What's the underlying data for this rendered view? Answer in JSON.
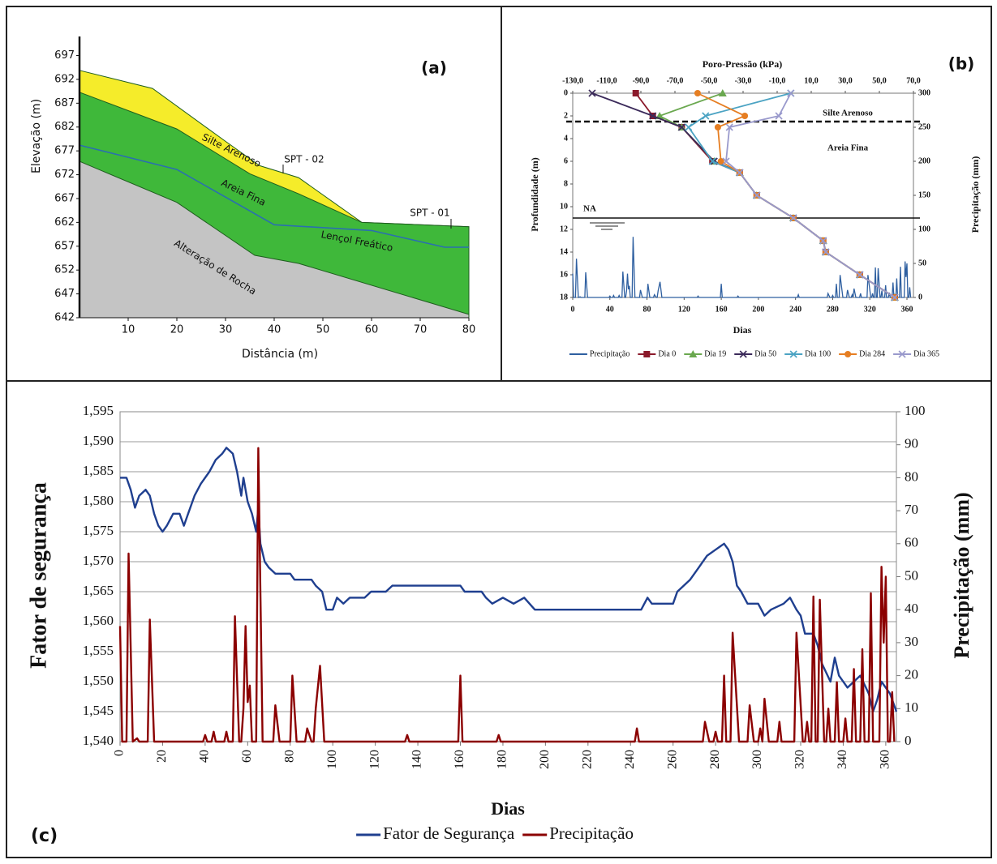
{
  "chart_data": [
    {
      "type": "section",
      "panel_label": "(a)",
      "xlabel": "Distância (m)",
      "ylabel": "Elevação (m)",
      "xlim": [
        0,
        80
      ],
      "ylim": [
        642,
        701
      ],
      "xticks": [
        10,
        20,
        30,
        40,
        50,
        60,
        70,
        80
      ],
      "yticks": [
        642,
        647,
        652,
        657,
        662,
        667,
        672,
        677,
        682,
        687,
        692,
        697
      ],
      "series": [
        {
          "name": "Silte Arenoso",
          "color": "#f5ec2a",
          "style": "area",
          "x": [
            0,
            15,
            30,
            37,
            45,
            58,
            80
          ],
          "values": [
            693.9,
            690.1,
            679,
            673.9,
            671.4,
            662,
            661.1
          ]
        },
        {
          "name": "Areia Fina",
          "color": "#3fb83a",
          "style": "area",
          "x": [
            0,
            20,
            35,
            45,
            58,
            80
          ],
          "values": [
            689.3,
            681.6,
            672.2,
            668,
            662,
            661.1
          ]
        },
        {
          "name": "Alteração de Rocha",
          "color": "#c4c4c4",
          "style": "area",
          "x": [
            0,
            20,
            36,
            45,
            80
          ],
          "values": [
            674.8,
            666.2,
            655.1,
            653.4,
            642.7
          ]
        },
        {
          "name": "Lençol Freático",
          "color": "#2a6fb0",
          "style": "line",
          "x": [
            0,
            20,
            40,
            60,
            75,
            80
          ],
          "values": [
            678.2,
            673.1,
            661.5,
            660.3,
            656.8,
            656.8
          ]
        }
      ],
      "annotations": [
        "SPT - 02",
        "SPT - 01"
      ]
    },
    {
      "type": "profile",
      "panel_label": "(b)",
      "x2label": "Poro-Pressão (kPa)",
      "ylabel": "Profundidade (m)",
      "xlabel": "Dias",
      "y2label": "Precipitação (mm)",
      "x2lim": [
        -130,
        70
      ],
      "x2ticks": [
        {
          "value": -130,
          "label": "-130,0"
        },
        {
          "value": -110,
          "label": "-110,0"
        },
        {
          "value": -90,
          "label": "-90,0"
        },
        {
          "value": -70,
          "label": "-70,0"
        },
        {
          "value": -50,
          "label": "-50,0"
        },
        {
          "value": -30,
          "label": "-30,0"
        },
        {
          "value": -10,
          "label": "-10,0"
        },
        {
          "value": 10,
          "label": "10,0"
        },
        {
          "value": 30,
          "label": "30,0"
        },
        {
          "value": 50,
          "label": "50,0"
        },
        {
          "value": 70,
          "label": "70,0"
        }
      ],
      "xlim": [
        0,
        367
      ],
      "xticks": [
        0,
        40,
        80,
        120,
        160,
        200,
        240,
        280,
        320,
        360
      ],
      "ylim": [
        0,
        18
      ],
      "y_inverted": true,
      "yticks": [
        0,
        2,
        4,
        6,
        8,
        10,
        12,
        14,
        16,
        18
      ],
      "y2lim": [
        0,
        300
      ],
      "y2ticks": [
        0,
        50,
        100,
        150,
        200,
        250,
        300
      ],
      "layer_boundary_depth": 2.5,
      "water_table_depth": 11,
      "annotations": [
        "Silte Arenoso",
        "Areia Fina",
        "NA"
      ],
      "legend": "bottom",
      "depths": [
        0,
        2,
        3,
        6,
        7,
        9,
        11,
        13,
        14,
        16,
        18
      ],
      "series": [
        {
          "name": "Precipitação",
          "color": "#2e5fa0",
          "axis": "y2",
          "x": [
            0,
            1,
            3,
            4,
            6,
            8,
            9,
            13,
            14,
            16,
            39,
            40,
            41,
            43,
            44,
            45,
            49,
            50,
            51,
            53,
            54,
            56,
            57,
            58,
            59,
            60,
            61,
            62,
            64,
            65,
            67,
            72,
            73,
            75,
            80,
            81,
            83,
            87,
            88,
            90,
            91,
            92,
            94,
            96,
            134,
            135,
            136,
            159,
            160,
            161,
            177,
            178,
            179,
            242,
            243,
            244,
            274,
            275,
            277,
            279,
            280,
            281,
            283,
            284,
            285,
            287,
            288,
            291,
            295,
            296,
            298,
            300,
            301,
            302,
            303,
            305,
            309,
            310,
            311,
            317,
            318,
            321,
            322,
            323,
            324,
            325,
            326,
            327,
            328,
            329,
            331,
            332,
            333,
            334,
            336,
            337,
            338,
            340,
            341,
            342,
            344,
            345,
            346,
            348,
            349,
            350,
            352,
            353,
            354,
            357,
            358,
            359,
            360,
            361,
            362,
            363,
            364
          ],
          "values": [
            35,
            0,
            0,
            57,
            0,
            1,
            0,
            0,
            37,
            0,
            0,
            2,
            0,
            0,
            3,
            0,
            0,
            3,
            0,
            0,
            38,
            0,
            0,
            10,
            35,
            12,
            17,
            0,
            0,
            89,
            0,
            0,
            11,
            0,
            0,
            20,
            0,
            0,
            4,
            0,
            0,
            10,
            23,
            0,
            0,
            2,
            0,
            0,
            20,
            0,
            0,
            2,
            0,
            0,
            4,
            0,
            0,
            6,
            0,
            0,
            3,
            0,
            0,
            20,
            0,
            0,
            33,
            0,
            0,
            11,
            0,
            0,
            4,
            0,
            13,
            0,
            0,
            6,
            0,
            0,
            33,
            0,
            0,
            6,
            0,
            0,
            44,
            0,
            0,
            43,
            0,
            0,
            10,
            0,
            0,
            18,
            0,
            0,
            7,
            0,
            0,
            22,
            0,
            0,
            28,
            0,
            0,
            45,
            0,
            0,
            53,
            30,
            50,
            0,
            0,
            15,
            0
          ]
        },
        {
          "name": "Dia 0",
          "color": "#8b1a2b",
          "marker": "square",
          "axis": "x2",
          "values": [
            -93,
            -83,
            -66,
            -48,
            -32,
            -22,
            -0.5,
            17,
            18.5,
            38.5,
            59
          ]
        },
        {
          "name": "Dia 19",
          "color": "#6aa84f",
          "marker": "triangle",
          "axis": "x2",
          "values": [
            -42,
            -79,
            -66,
            -47,
            -32,
            -22,
            -0.5,
            17,
            18.5,
            38.5,
            59
          ]
        },
        {
          "name": "Dia 50",
          "color": "#3b2a5a",
          "marker": "x",
          "axis": "x2",
          "values": [
            -118.6,
            -83,
            -66,
            -47,
            -32,
            -22,
            -0.5,
            17,
            18.5,
            38.5,
            59
          ]
        },
        {
          "name": "Dia 100",
          "color": "#4ba3c3",
          "marker": "x",
          "axis": "x2",
          "values": [
            -2,
            -52,
            -62,
            -48,
            -32,
            -22,
            -0.5,
            17,
            18.5,
            38.5,
            59
          ]
        },
        {
          "name": "Dia 284",
          "color": "#e67e22",
          "marker": "circle",
          "axis": "x2",
          "values": [
            -56.7,
            -29,
            -44.8,
            -43,
            -32,
            -22,
            -0.5,
            17,
            18.5,
            38.5,
            59
          ]
        },
        {
          "name": "Dia 365",
          "color": "#9999cc",
          "marker": "x",
          "axis": "x2",
          "values": [
            -2,
            -9,
            -38,
            -40,
            -32,
            -22,
            -0.5,
            17,
            18.5,
            38.5,
            59
          ]
        }
      ]
    },
    {
      "type": "line",
      "panel_label": "(c)",
      "xlabel": "Dias",
      "ylabel": "Fator de segurança",
      "y2label": "Precipitação (mm)",
      "xlim": [
        0,
        365
      ],
      "xticks": [
        0,
        20,
        40,
        60,
        80,
        100,
        120,
        140,
        160,
        180,
        200,
        220,
        240,
        260,
        280,
        300,
        320,
        340,
        360
      ],
      "ylim": [
        1.54,
        1.595
      ],
      "yticks": [
        {
          "value": 1.54,
          "label": "1,540"
        },
        {
          "value": 1.545,
          "label": "1,545"
        },
        {
          "value": 1.55,
          "label": "1,550"
        },
        {
          "value": 1.555,
          "label": "1,555"
        },
        {
          "value": 1.56,
          "label": "1,560"
        },
        {
          "value": 1.565,
          "label": "1,565"
        },
        {
          "value": 1.57,
          "label": "1,570"
        },
        {
          "value": 1.575,
          "label": "1,575"
        },
        {
          "value": 1.58,
          "label": "1,580"
        },
        {
          "value": 1.585,
          "label": "1,585"
        },
        {
          "value": 1.59,
          "label": "1,590"
        },
        {
          "value": 1.595,
          "label": "1,595"
        }
      ],
      "y2lim": [
        0,
        100
      ],
      "y2ticks": [
        0,
        10,
        20,
        30,
        40,
        50,
        60,
        70,
        80,
        90,
        100
      ],
      "grid": true,
      "legend": "bottom",
      "series": [
        {
          "name": "Fator de Segurança",
          "color": "#1f3f8f",
          "x": [
            0,
            3,
            5,
            7,
            9,
            12,
            14,
            16,
            18,
            20,
            22,
            25,
            28,
            30,
            32,
            35,
            38,
            42,
            45,
            48,
            50,
            53,
            55,
            57,
            58,
            60,
            62,
            64,
            65,
            66,
            68,
            70,
            73,
            80,
            82,
            90,
            92,
            95,
            97,
            100,
            102,
            105,
            108,
            115,
            118,
            125,
            128,
            160,
            162,
            170,
            172,
            175,
            180,
            185,
            190,
            195,
            245,
            248,
            250,
            260,
            262,
            265,
            268,
            272,
            276,
            280,
            284,
            286,
            288,
            290,
            292,
            295,
            300,
            303,
            306,
            312,
            315,
            318,
            320,
            322,
            326,
            328,
            330,
            334,
            336,
            338,
            342,
            348,
            352,
            354,
            356,
            358,
            362,
            365
          ],
          "values": [
            1.584,
            1.584,
            1.582,
            1.579,
            1.581,
            1.582,
            1.581,
            1.578,
            1.576,
            1.575,
            1.576,
            1.578,
            1.578,
            1.576,
            1.578,
            1.581,
            1.583,
            1.585,
            1.587,
            1.588,
            1.589,
            1.588,
            1.585,
            1.581,
            1.584,
            1.58,
            1.578,
            1.575,
            1.579,
            1.573,
            1.57,
            1.569,
            1.568,
            1.568,
            1.567,
            1.567,
            1.566,
            1.565,
            1.562,
            1.562,
            1.564,
            1.563,
            1.564,
            1.564,
            1.565,
            1.565,
            1.566,
            1.566,
            1.565,
            1.565,
            1.564,
            1.563,
            1.564,
            1.563,
            1.564,
            1.562,
            1.562,
            1.564,
            1.563,
            1.563,
            1.565,
            1.566,
            1.567,
            1.569,
            1.571,
            1.572,
            1.573,
            1.572,
            1.57,
            1.566,
            1.565,
            1.563,
            1.563,
            1.561,
            1.562,
            1.563,
            1.564,
            1.562,
            1.561,
            1.558,
            1.558,
            1.556,
            1.553,
            1.55,
            1.554,
            1.551,
            1.549,
            1.551,
            1.548,
            1.545,
            1.547,
            1.55,
            1.548,
            1.545
          ]
        },
        {
          "name": "Precipitação",
          "color": "#8b0000",
          "axis": "y2",
          "x": [
            0,
            1,
            3,
            4,
            6,
            8,
            9,
            13,
            14,
            16,
            39,
            40,
            41,
            43,
            44,
            45,
            49,
            50,
            51,
            53,
            54,
            56,
            57,
            58,
            59,
            60,
            61,
            62,
            64,
            65,
            67,
            72,
            73,
            75,
            80,
            81,
            83,
            87,
            88,
            90,
            91,
            92,
            94,
            96,
            134,
            135,
            136,
            159,
            160,
            161,
            177,
            178,
            179,
            242,
            243,
            244,
            274,
            275,
            277,
            279,
            280,
            281,
            283,
            284,
            285,
            287,
            288,
            291,
            295,
            296,
            298,
            300,
            301,
            302,
            303,
            305,
            309,
            310,
            311,
            317,
            318,
            321,
            322,
            323,
            324,
            325,
            326,
            327,
            328,
            329,
            331,
            332,
            333,
            334,
            336,
            337,
            338,
            340,
            341,
            342,
            344,
            345,
            346,
            348,
            349,
            350,
            352,
            353,
            354,
            357,
            358,
            359,
            360,
            361,
            362,
            363,
            364
          ],
          "values": [
            35,
            0,
            0,
            57,
            0,
            1,
            0,
            0,
            37,
            0,
            0,
            2,
            0,
            0,
            3,
            0,
            0,
            3,
            0,
            0,
            38,
            0,
            0,
            10,
            35,
            12,
            17,
            0,
            0,
            89,
            0,
            0,
            11,
            0,
            0,
            20,
            0,
            0,
            4,
            0,
            0,
            10,
            23,
            0,
            0,
            2,
            0,
            0,
            20,
            0,
            0,
            2,
            0,
            0,
            4,
            0,
            0,
            6,
            0,
            0,
            3,
            0,
            0,
            20,
            0,
            0,
            33,
            0,
            0,
            11,
            0,
            0,
            4,
            0,
            13,
            0,
            0,
            6,
            0,
            0,
            33,
            0,
            0,
            6,
            0,
            0,
            44,
            0,
            0,
            43,
            0,
            0,
            10,
            0,
            0,
            18,
            0,
            0,
            7,
            0,
            0,
            22,
            0,
            0,
            28,
            0,
            0,
            45,
            0,
            0,
            53,
            30,
            50,
            0,
            0,
            15,
            0
          ]
        }
      ]
    }
  ]
}
